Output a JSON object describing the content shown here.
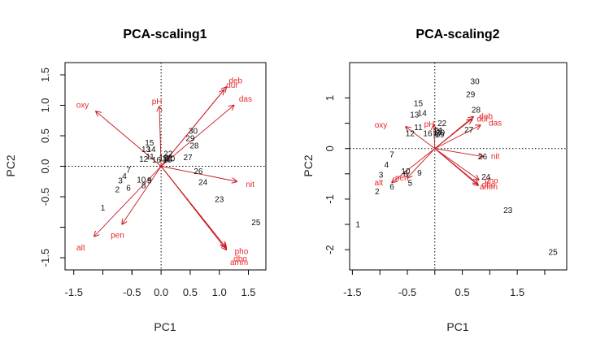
{
  "colors": {
    "arrow": "#c8191f",
    "var_text": "#e8262a",
    "site_text": "#111111",
    "frame": "#000000"
  },
  "chart_data": [
    {
      "type": "scatter",
      "title": "PCA-scaling1",
      "xlabel": "PC1",
      "ylabel": "PC2",
      "xlim": [
        -1.65,
        1.8
      ],
      "ylim": [
        -1.7,
        1.7
      ],
      "xticks": [
        {
          "value": -1.5,
          "label": "-1.5"
        },
        {
          "value": -0.5,
          "label": "-0.5"
        },
        {
          "value": 0.0,
          "label": "0.0"
        },
        {
          "value": 0.5,
          "label": "0.5"
        },
        {
          "value": 1.0,
          "label": "1.0"
        },
        {
          "value": 1.5,
          "label": "1.5"
        }
      ],
      "yticks": [
        {
          "value": 1.5,
          "label": "1.5"
        },
        {
          "value": 1.0,
          "label": "1.0"
        },
        {
          "value": 0.5,
          "label": "0.5"
        },
        {
          "value": 0.0,
          "label": "0.0"
        },
        {
          "value": -0.5,
          "label": "-0.5"
        },
        {
          "value": -1.5,
          "label": "-1.5"
        }
      ],
      "minor_xticks": [
        -1.0,
        -0.5
      ],
      "minor_yticks": [
        -1.0
      ],
      "reference_lines": {
        "x": 0,
        "y": 0
      },
      "sites": [
        {
          "label": "1",
          "x": -1.0,
          "y": -0.68
        },
        {
          "label": "2",
          "x": -0.75,
          "y": -0.38
        },
        {
          "label": "3",
          "x": -0.7,
          "y": -0.23
        },
        {
          "label": "4",
          "x": -0.63,
          "y": -0.16
        },
        {
          "label": "5",
          "x": -0.2,
          "y": -0.23
        },
        {
          "label": "6",
          "x": -0.56,
          "y": -0.35
        },
        {
          "label": "7",
          "x": -0.56,
          "y": -0.06
        },
        {
          "label": "8",
          "x": -0.3,
          "y": -0.31
        },
        {
          "label": "9",
          "x": -0.2,
          "y": -0.23
        },
        {
          "label": "10",
          "x": -0.34,
          "y": -0.22
        },
        {
          "label": "11",
          "x": -0.19,
          "y": 0.16
        },
        {
          "label": "12",
          "x": -0.3,
          "y": 0.12
        },
        {
          "label": "13",
          "x": -0.26,
          "y": 0.28
        },
        {
          "label": "14",
          "x": -0.17,
          "y": 0.28
        },
        {
          "label": "15",
          "x": -0.2,
          "y": 0.39
        },
        {
          "label": "16",
          "x": -0.08,
          "y": 0.11
        },
        {
          "label": "17",
          "x": 0.09,
          "y": 0.13
        },
        {
          "label": "18",
          "x": 0.04,
          "y": 0.14
        },
        {
          "label": "19",
          "x": 0.11,
          "y": 0.11
        },
        {
          "label": "20",
          "x": 0.16,
          "y": 0.13
        },
        {
          "label": "21",
          "x": 0.13,
          "y": 0.14
        },
        {
          "label": "22",
          "x": 0.12,
          "y": 0.21
        },
        {
          "label": "23",
          "x": 1.0,
          "y": -0.54
        },
        {
          "label": "24",
          "x": 0.72,
          "y": -0.26
        },
        {
          "label": "25",
          "x": 1.63,
          "y": -0.92
        },
        {
          "label": "26",
          "x": 0.64,
          "y": -0.08
        },
        {
          "label": "27",
          "x": 0.46,
          "y": 0.15
        },
        {
          "label": "28",
          "x": 0.57,
          "y": 0.34
        },
        {
          "label": "29",
          "x": 0.5,
          "y": 0.46
        },
        {
          "label": "30",
          "x": 0.55,
          "y": 0.58
        }
      ],
      "variables": [
        {
          "label": "oxy",
          "x": -1.12,
          "y": 0.9,
          "lx": -1.35,
          "ly": 1.0
        },
        {
          "label": "pH",
          "x": -0.03,
          "y": 0.98,
          "lx": -0.07,
          "ly": 1.06
        },
        {
          "label": "deb",
          "x": 1.12,
          "y": 1.3,
          "lx": 1.28,
          "ly": 1.4
        },
        {
          "label": "dur",
          "x": 1.08,
          "y": 1.25,
          "lx": 1.22,
          "ly": 1.33
        },
        {
          "label": "das",
          "x": 1.25,
          "y": 1.0,
          "lx": 1.45,
          "ly": 1.1
        },
        {
          "label": "nit",
          "x": 1.3,
          "y": -0.25,
          "lx": 1.53,
          "ly": -0.3
        },
        {
          "label": "pho",
          "x": 1.12,
          "y": -1.34,
          "lx": 1.38,
          "ly": -1.4
        },
        {
          "label": "amm",
          "x": 1.12,
          "y": -1.37,
          "lx": 1.34,
          "ly": -1.58
        },
        {
          "label": "dbo",
          "x": 1.1,
          "y": -1.32,
          "lx": 1.36,
          "ly": -1.52
        },
        {
          "label": "pen",
          "x": -0.67,
          "y": -0.95,
          "lx": -0.75,
          "ly": -1.13
        },
        {
          "label": "alt",
          "x": -1.15,
          "y": -1.15,
          "lx": -1.38,
          "ly": -1.34
        }
      ]
    },
    {
      "type": "scatter",
      "title": "PCA-scaling2",
      "xlabel": "PC1",
      "ylabel": "PC2",
      "xlim": [
        -1.55,
        2.4
      ],
      "ylim": [
        -2.4,
        1.7
      ],
      "xticks": [
        {
          "value": -1.5,
          "label": "-1.5"
        },
        {
          "value": -0.5,
          "label": "-0.5"
        },
        {
          "value": 0.5,
          "label": "0.5"
        },
        {
          "value": 1.5,
          "label": "1.5"
        }
      ],
      "yticks": [
        {
          "value": 1,
          "label": "1"
        },
        {
          "value": 0,
          "label": "0"
        },
        {
          "value": -1,
          "label": "-1"
        },
        {
          "value": -2,
          "label": "-2"
        }
      ],
      "minor_xticks": [
        -1.0,
        0.0,
        1.0,
        2.0
      ],
      "minor_yticks": [
        0.5,
        -0.5,
        -1.5
      ],
      "reference_lines": {
        "x": 0,
        "y": 0
      },
      "sites": [
        {
          "label": "1",
          "x": -1.4,
          "y": -1.5
        },
        {
          "label": "2",
          "x": -1.05,
          "y": -0.85
        },
        {
          "label": "3",
          "x": -0.98,
          "y": -0.52
        },
        {
          "label": "4",
          "x": -0.88,
          "y": -0.32
        },
        {
          "label": "5",
          "x": -0.45,
          "y": -0.68
        },
        {
          "label": "6",
          "x": -0.78,
          "y": -0.75
        },
        {
          "label": "7",
          "x": -0.78,
          "y": -0.12
        },
        {
          "label": "8",
          "x": -0.53,
          "y": -0.5
        },
        {
          "label": "9",
          "x": -0.28,
          "y": -0.48
        },
        {
          "label": "10",
          "x": -0.53,
          "y": -0.45
        },
        {
          "label": "11",
          "x": -0.3,
          "y": 0.42
        },
        {
          "label": "12",
          "x": -0.45,
          "y": 0.3
        },
        {
          "label": "13",
          "x": -0.37,
          "y": 0.67
        },
        {
          "label": "14",
          "x": -0.23,
          "y": 0.7
        },
        {
          "label": "15",
          "x": -0.3,
          "y": 0.9
        },
        {
          "label": "16",
          "x": -0.13,
          "y": 0.3
        },
        {
          "label": "17",
          "x": 0.05,
          "y": 0.3
        },
        {
          "label": "18",
          "x": 0.05,
          "y": 0.33
        },
        {
          "label": "19",
          "x": 0.09,
          "y": 0.28
        },
        {
          "label": "20",
          "x": 0.1,
          "y": 0.32
        },
        {
          "label": "21",
          "x": 0.07,
          "y": 0.36
        },
        {
          "label": "22",
          "x": 0.13,
          "y": 0.5
        },
        {
          "label": "23",
          "x": 1.33,
          "y": -1.22
        },
        {
          "label": "24",
          "x": 0.93,
          "y": -0.56
        },
        {
          "label": "25",
          "x": 2.15,
          "y": -2.05
        },
        {
          "label": "26",
          "x": 0.87,
          "y": -0.16
        },
        {
          "label": "27",
          "x": 0.62,
          "y": 0.37
        },
        {
          "label": "28",
          "x": 0.75,
          "y": 0.77
        },
        {
          "label": "29",
          "x": 0.65,
          "y": 1.07
        },
        {
          "label": "30",
          "x": 0.73,
          "y": 1.33
        }
      ],
      "variables": [
        {
          "label": "oxy",
          "x": -0.53,
          "y": 0.43,
          "lx": -0.98,
          "ly": 0.46
        },
        {
          "label": "pH",
          "x": -0.02,
          "y": 0.47,
          "lx": -0.1,
          "ly": 0.48
        },
        {
          "label": "deb",
          "x": 0.7,
          "y": 0.63,
          "lx": 0.93,
          "ly": 0.63
        },
        {
          "label": "dur",
          "x": 0.67,
          "y": 0.58,
          "lx": 0.87,
          "ly": 0.58
        },
        {
          "label": "das",
          "x": 0.83,
          "y": 0.46,
          "lx": 1.1,
          "ly": 0.5
        },
        {
          "label": "nit",
          "x": 0.88,
          "y": -0.16,
          "lx": 1.1,
          "ly": -0.16
        },
        {
          "label": "pho",
          "x": 0.8,
          "y": -0.62,
          "lx": 1.03,
          "ly": -0.64
        },
        {
          "label": "dbo",
          "x": 0.78,
          "y": -0.7,
          "lx": 0.98,
          "ly": -0.72
        },
        {
          "label": "amm",
          "x": 0.79,
          "y": -0.73,
          "lx": 0.98,
          "ly": -0.76
        },
        {
          "label": "pen",
          "x": -0.5,
          "y": -0.58,
          "lx": -0.6,
          "ly": -0.58
        },
        {
          "label": "alt",
          "x": -0.78,
          "y": -0.67,
          "lx": -1.02,
          "ly": -0.68
        }
      ]
    }
  ]
}
